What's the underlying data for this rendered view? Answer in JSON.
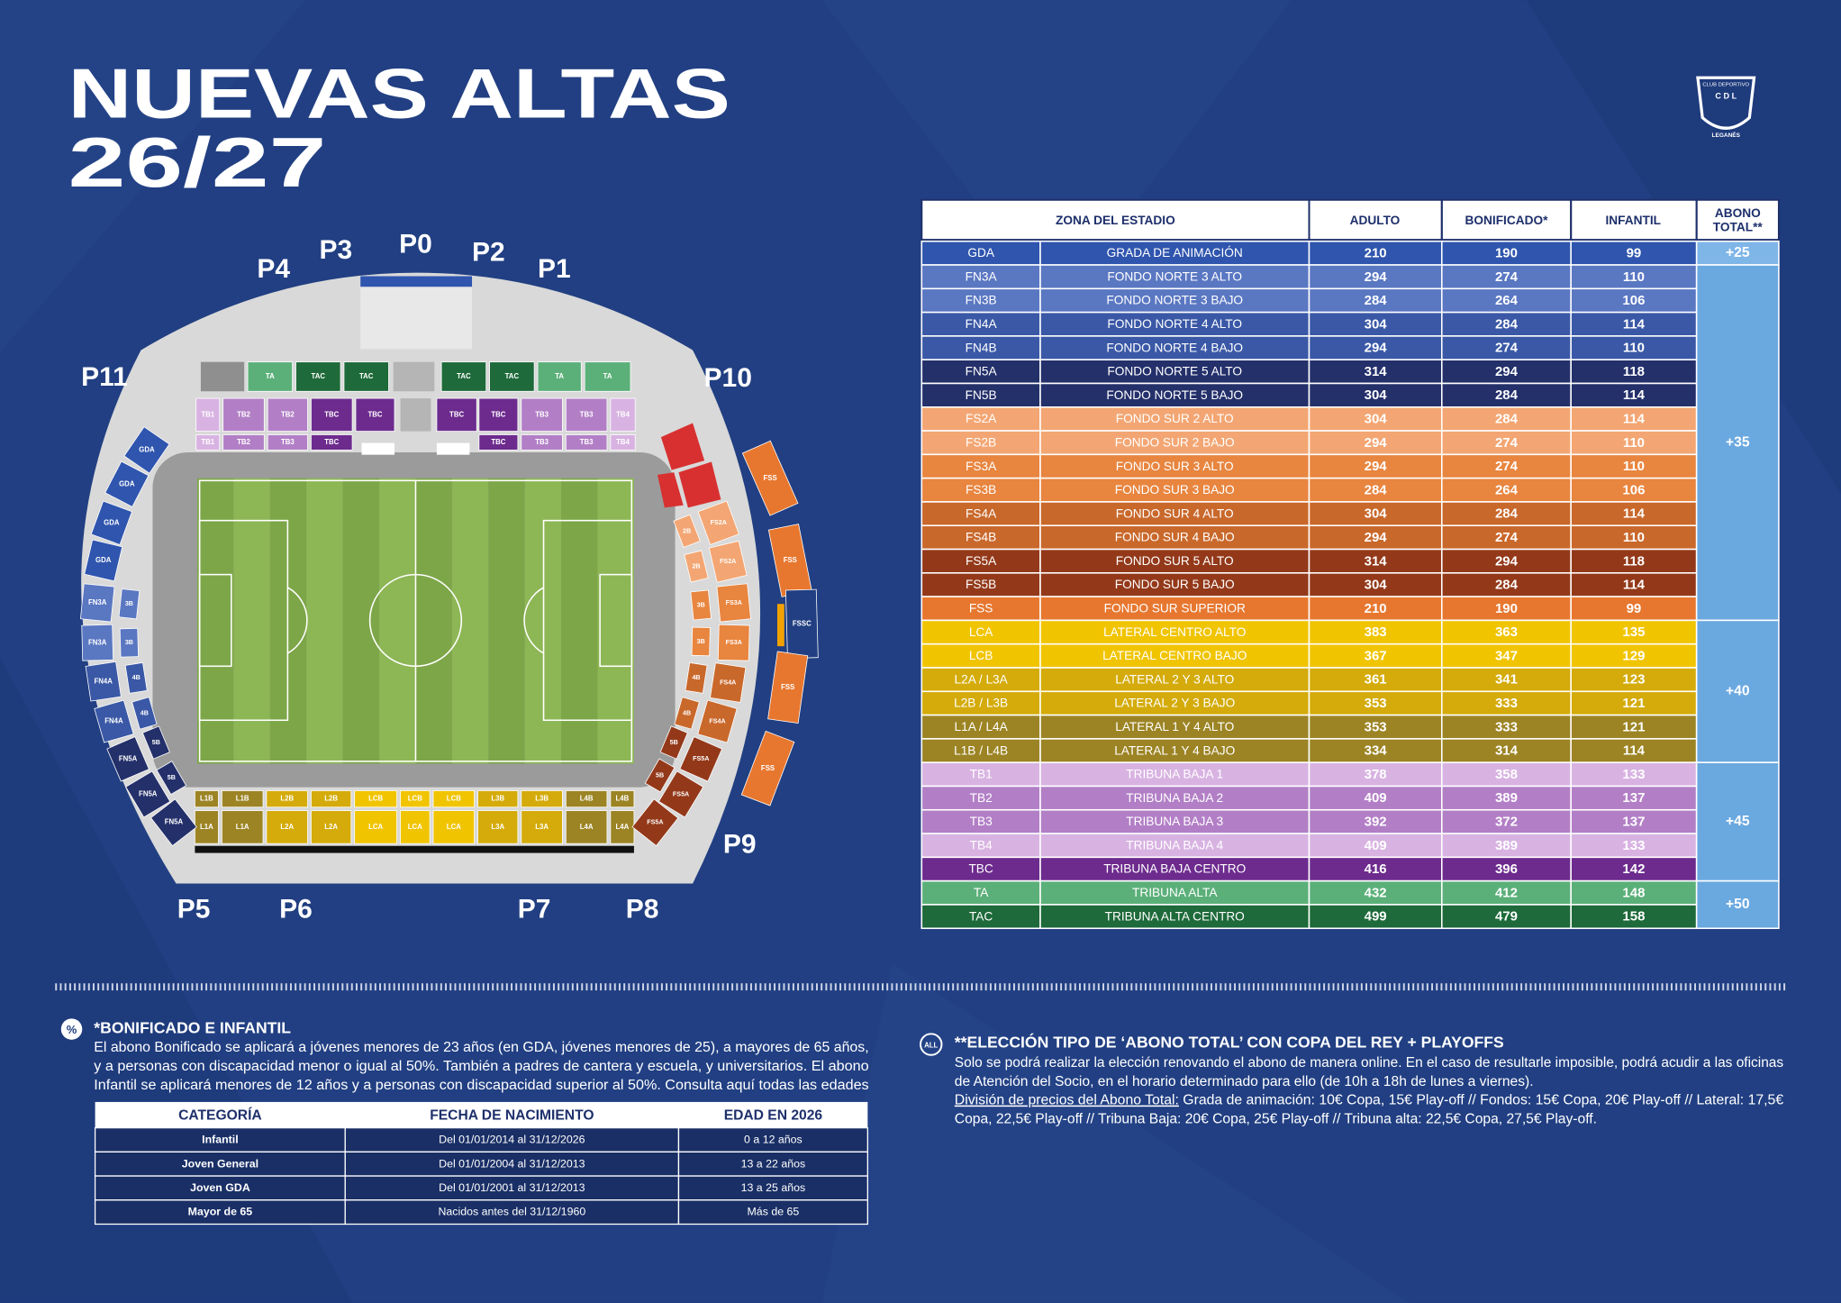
{
  "header": {
    "title_line1": "NUEVAS ALTAS",
    "title_line2": "26/27"
  },
  "logo": {
    "top": "CLUB DEPORTIVO",
    "middle": "C D L",
    "bottom": "LEGANÉS"
  },
  "map": {
    "gates": [
      "P4",
      "P3",
      "P0",
      "P2",
      "P1",
      "P11",
      "P10",
      "P9",
      "P5",
      "P6",
      "P7",
      "P8"
    ],
    "top_row1": [
      "TA",
      "TAC",
      "TAC",
      "TAC",
      "TAC",
      "TA",
      "TA"
    ],
    "top_row2": [
      "TB1",
      "TB2",
      "TB2",
      "TBC",
      "TBC",
      "TBC",
      "TBC",
      "TB3",
      "TB3",
      "TB4"
    ],
    "top_row3": [
      "TB1",
      "TB2",
      "TB3",
      "TBC",
      "TBC",
      "TB3",
      "TB3",
      "TB4"
    ],
    "bottom_row1": [
      "L1B",
      "L1B",
      "L2B",
      "L2B",
      "LCB",
      "LCB",
      "LCB",
      "L3B",
      "L3B",
      "L4B",
      "L4B"
    ],
    "bottom_row2": [
      "L1A",
      "L1A",
      "L2A",
      "L2A",
      "LCA",
      "LCA",
      "LCA",
      "L3A",
      "L3A",
      "L4A",
      "L4A"
    ],
    "left_outer": [
      "GDA",
      "GDA",
      "GDA",
      "GDA",
      "FN3A",
      "FN3A",
      "FN4A",
      "FN4A",
      "FN5A",
      "FN5A",
      "FN5A"
    ],
    "left_inner": [
      "3B",
      "3B",
      "4B",
      "4B",
      "5B",
      "5B"
    ],
    "right_inner": [
      "2B",
      "2B",
      "3B",
      "3B",
      "4B",
      "4B",
      "5B",
      "5B"
    ],
    "right_mid": [
      "FS2A",
      "FS2A",
      "FS3A",
      "FS3A",
      "FS4A",
      "FS4A",
      "FS5A",
      "FS5A",
      "FS5A"
    ],
    "right_outer": [
      "FSS",
      "FSS",
      "FSSC",
      "FSS",
      "FSS"
    ]
  },
  "price_table": {
    "headers": {
      "zona": "ZONA DEL ESTADIO",
      "adulto": "ADULTO",
      "bonificado": "BONIFICADO*",
      "infantil": "INFANTIL",
      "abono_line1": "ABONO",
      "abono_line2": "TOTAL**"
    },
    "rows": [
      [
        "GDA",
        "GRADA DE ANIMACIÓN",
        210,
        190,
        99
      ],
      [
        "FN3A",
        "FONDO NORTE 3 ALTO",
        294,
        274,
        110
      ],
      [
        "FN3B",
        "FONDO NORTE 3 BAJO",
        284,
        264,
        106
      ],
      [
        "FN4A",
        "FONDO NORTE 4 ALTO",
        304,
        284,
        114
      ],
      [
        "FN4B",
        "FONDO NORTE 4 BAJO",
        294,
        274,
        110
      ],
      [
        "FN5A",
        "FONDO NORTE 5 ALTO",
        314,
        294,
        118
      ],
      [
        "FN5B",
        "FONDO NORTE 5 BAJO",
        304,
        284,
        114
      ],
      [
        "FS2A",
        "FONDO SUR 2 ALTO",
        304,
        284,
        114
      ],
      [
        "FS2B",
        "FONDO SUR 2 BAJO",
        294,
        274,
        110
      ],
      [
        "FS3A",
        "FONDO SUR 3 ALTO",
        294,
        274,
        110
      ],
      [
        "FS3B",
        "FONDO SUR 3 BAJO",
        284,
        264,
        106
      ],
      [
        "FS4A",
        "FONDO SUR 4 ALTO",
        304,
        284,
        114
      ],
      [
        "FS4B",
        "FONDO SUR 4 BAJO",
        294,
        274,
        110
      ],
      [
        "FS5A",
        "FONDO SUR 5 ALTO",
        314,
        294,
        118
      ],
      [
        "FS5B",
        "FONDO SUR 5 BAJO",
        304,
        284,
        114
      ],
      [
        "FSS",
        "FONDO SUR SUPERIOR",
        210,
        190,
        99
      ],
      [
        "LCA",
        "LATERAL CENTRO ALTO",
        383,
        363,
        135
      ],
      [
        "LCB",
        "LATERAL CENTRO BAJO",
        367,
        347,
        129
      ],
      [
        "L2A / L3A",
        "LATERAL 2 Y 3 ALTO",
        361,
        341,
        123
      ],
      [
        "L2B / L3B",
        "LATERAL 2 Y 3 BAJO",
        353,
        333,
        121
      ],
      [
        "L1A / L4A",
        "LATERAL 1 Y 4 ALTO",
        353,
        333,
        121
      ],
      [
        "L1B / L4B",
        "LATERAL 1 Y 4 BAJO",
        334,
        314,
        114
      ],
      [
        "TB1",
        "TRIBUNA BAJA 1",
        378,
        358,
        133
      ],
      [
        "TB2",
        "TRIBUNA BAJA 2",
        409,
        389,
        137
      ],
      [
        "TB3",
        "TRIBUNA BAJA 3",
        392,
        372,
        137
      ],
      [
        "TB4",
        "TRIBUNA BAJA 4",
        409,
        389,
        133
      ],
      [
        "TBC",
        "TRIBUNA BAJA CENTRO",
        416,
        396,
        142
      ],
      [
        "TA",
        "TRIBUNA ALTA",
        432,
        412,
        148
      ],
      [
        "TAC",
        "TRIBUNA ALTA CENTRO",
        499,
        479,
        158
      ]
    ],
    "abono_total": [
      "+25",
      "+35",
      "+40",
      "+45",
      "+50"
    ]
  },
  "bonificado": {
    "icon": "%",
    "heading": "*BONIFICADO E INFANTIL",
    "lines": [
      "El abono Bonificado se aplicará a jóvenes menores de 23 años (en GDA, jóvenes menores de 25), a mayores de 65 años,",
      "y a personas con discapacidad menor o igual al 50%. También a padres de cantera y escuela, y universitarios. El abono",
      "Infantil se aplicará menores de 12 años y a personas con discapacidad superior al 50%.  Consulta aquí todas las edades"
    ],
    "table": {
      "headers": [
        "CATEGORÍA",
        "FECHA DE NACIMIENTO",
        "EDAD EN 2026"
      ],
      "rows": [
        [
          "Infantil",
          "Del 01/01/2014 al 31/12/2026",
          "0 a 12 años"
        ],
        [
          "Joven General",
          "Del 01/01/2004 al 31/12/2013",
          "13 a 22 años"
        ],
        [
          "Joven GDA",
          "Del 01/01/2001 al 31/12/2013",
          "13 a 25 años"
        ],
        [
          "Mayor de 65",
          "Nacidos antes del 31/12/1960",
          "Más de 65"
        ]
      ]
    }
  },
  "eleccion": {
    "icon": "ALL",
    "heading": "**ELECCIÓN TIPO DE ‘ABONO TOTAL’ CON COPA DEL REY + PLAYOFFS",
    "line1": "Solo se podrá realizar la elección renovando el abono de manera online. En el caso de resultarle imposible, podrá acudir a  las oficinas",
    "line2": "de Atención del Socio, en el horario determinado para ello (de 10h a 18h de lunes a viernes).",
    "link": "División de precios del Abono Total:",
    "line3_rest": " Grada de animación: 10€ Copa, 15€ Play-off  // Fondos: 15€ Copa, 20€ Play-off // Lateral: 17,5€",
    "line4": "Copa, 22,5€ Play-off  // Tribuna Baja: 20€ Copa, 25€ Play-off // Tribuna alta: 22,5€ Copa, 27,5€ Play-off."
  }
}
